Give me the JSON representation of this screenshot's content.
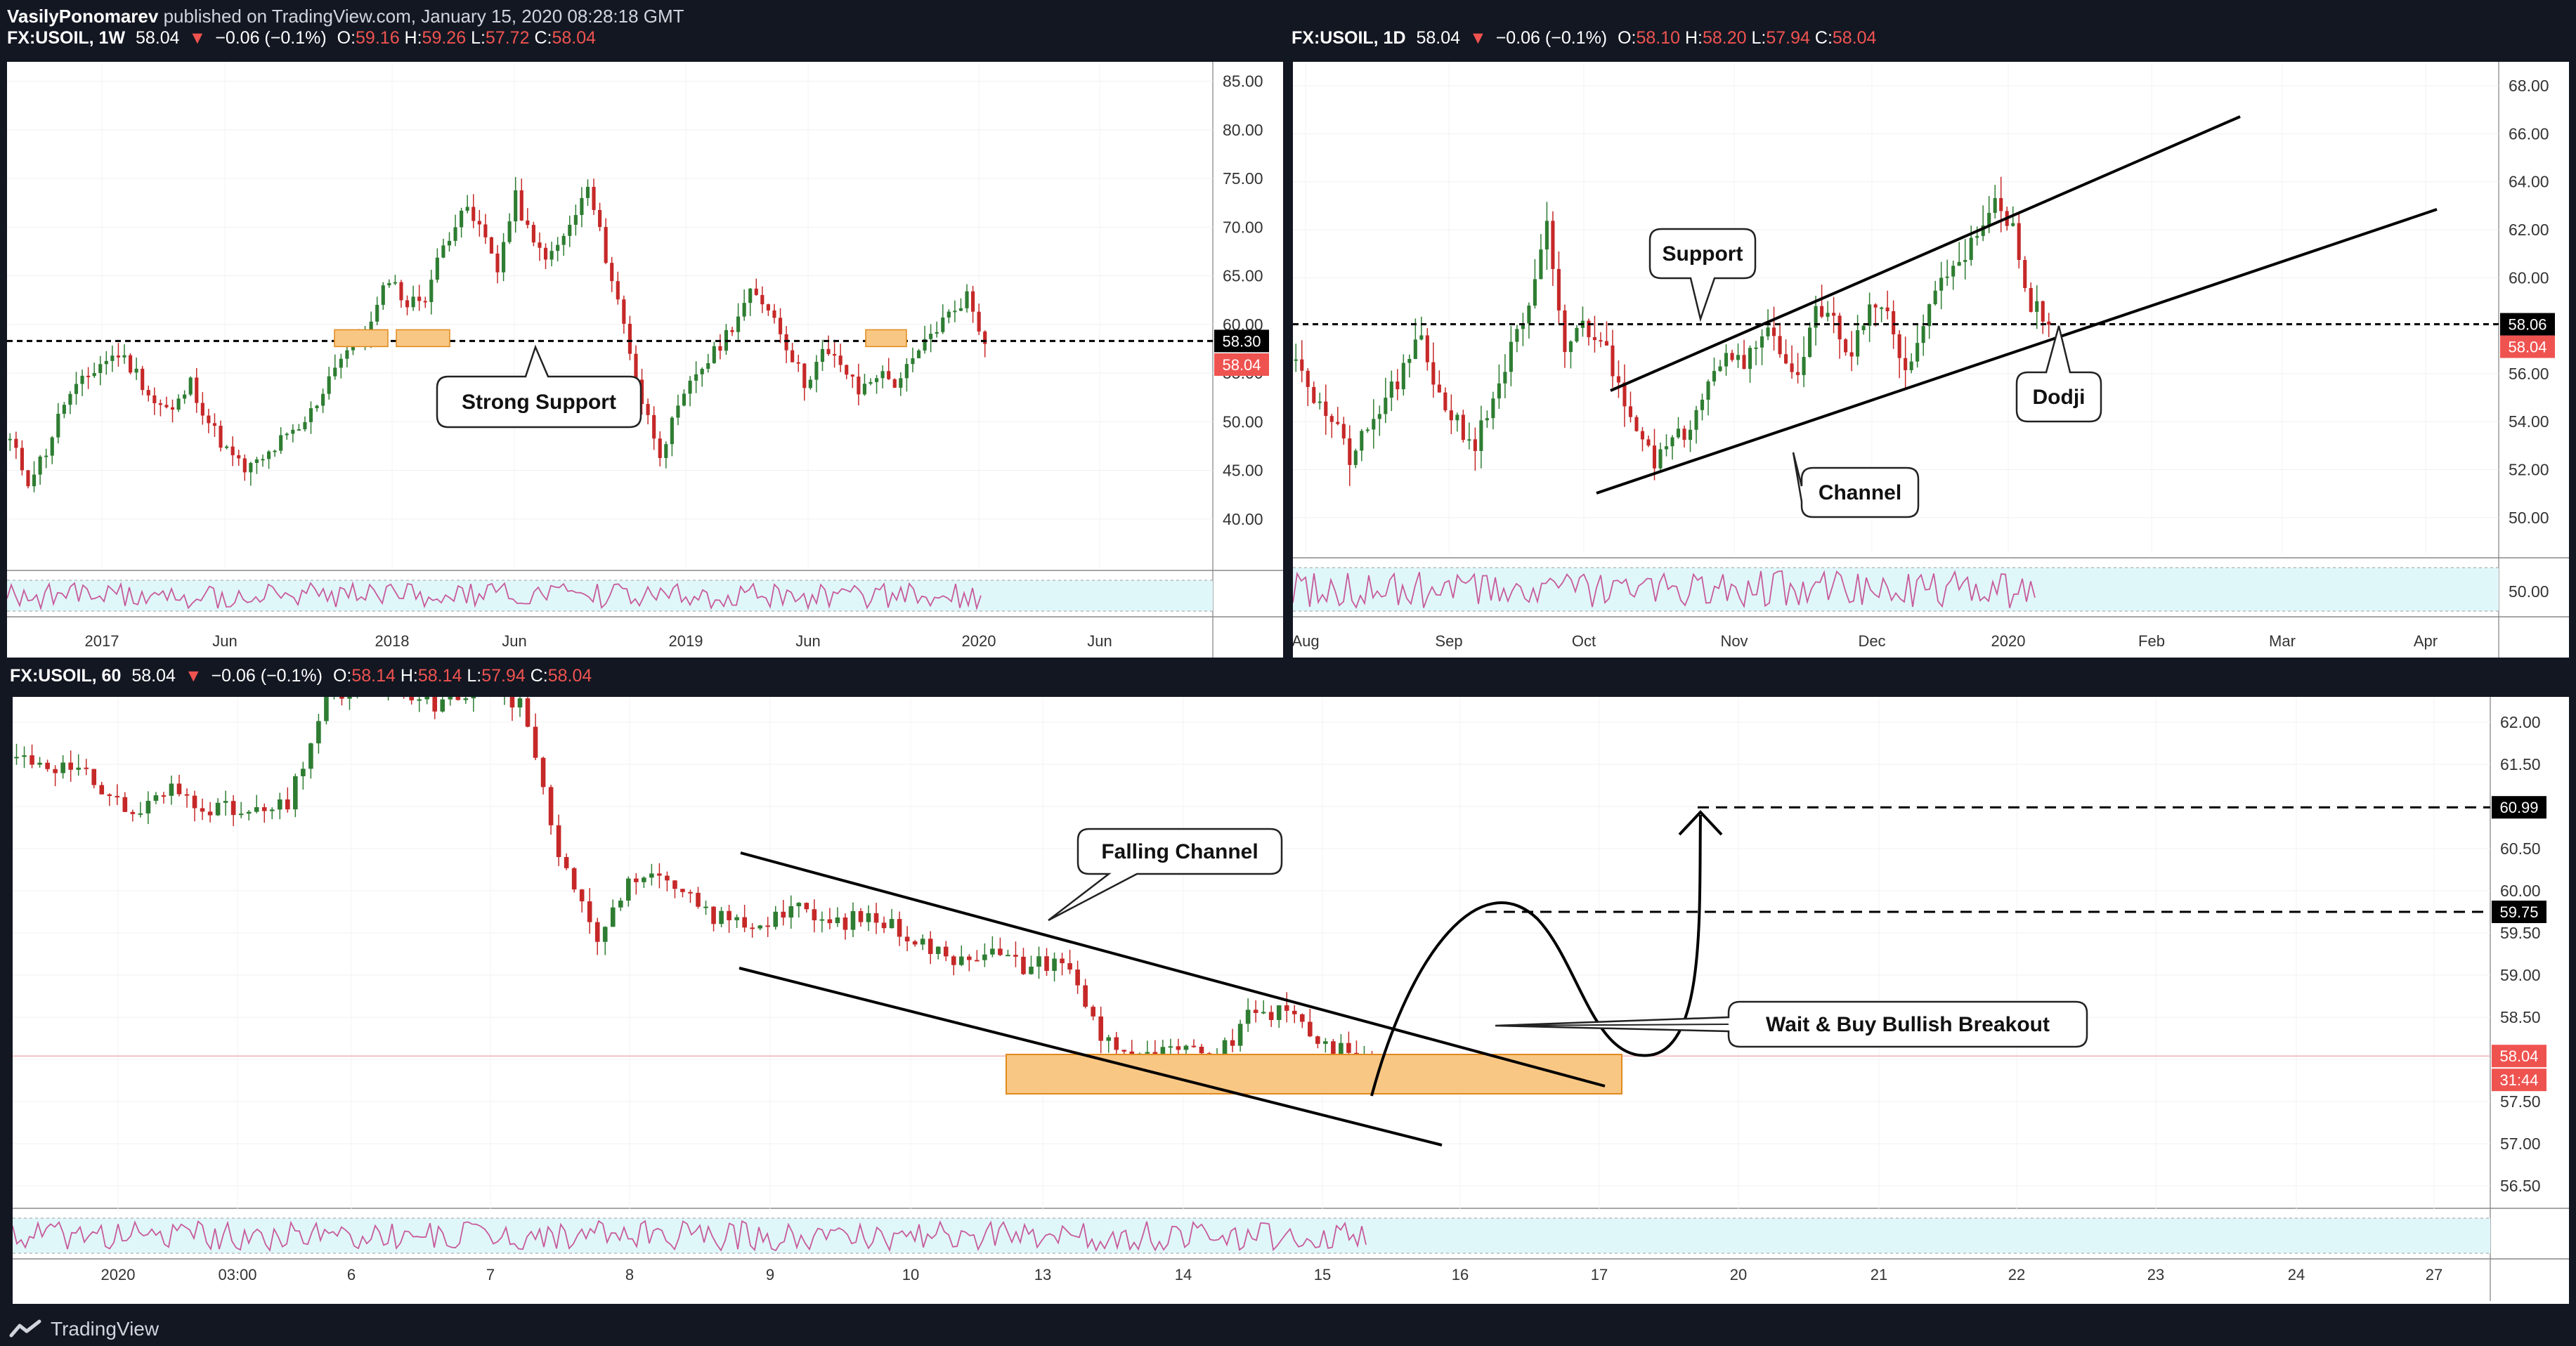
{
  "header": {
    "author": "VasilyPonomarev",
    "published": "published on TradingView.com, January 15, 2020 08:28:18 GMT"
  },
  "panels": {
    "weekly": {
      "symbol": "FX:USOIL, 1W",
      "price": "58.04",
      "change": "−0.06 (−0.1%)",
      "open": "59.16",
      "high": "59.26",
      "low": "57.72",
      "close": "58.04"
    },
    "daily": {
      "symbol": "FX:USOIL, 1D",
      "price": "58.04",
      "change": "−0.06 (−0.1%)",
      "open": "58.10",
      "high": "58.20",
      "low": "57.94",
      "close": "58.04"
    },
    "hourly": {
      "symbol": "FX:USOIL, 60",
      "price": "58.04",
      "change": "−0.06 (−0.1%)",
      "open": "58.14",
      "high": "58.14",
      "low": "57.94",
      "close": "58.04"
    }
  },
  "ohlc_labels": {
    "o": "O:",
    "h": "H:",
    "l": "L:",
    "c": "C:"
  },
  "footer": {
    "brand": "TradingView"
  },
  "colors": {
    "up": "#2e7d32",
    "down": "#c62828",
    "rsi": "#c75b9b",
    "rsi_bg": "#e0f7fa",
    "zone": "#f9c784",
    "badge_black": "#000000",
    "badge_red": "#ef5350"
  },
  "chart_data": [
    {
      "id": "weekly",
      "type": "candlestick",
      "ylim": [
        35,
        87
      ],
      "yticks": [
        35,
        40,
        45,
        50,
        55,
        60,
        65,
        70,
        75,
        80,
        85
      ],
      "xticks": [
        "2017",
        "Jun",
        "2018",
        "Jun",
        "2019",
        "Jun",
        "2020",
        "Jun"
      ],
      "support_level": 58.3,
      "price_badges": [
        {
          "label": "58.30",
          "color": "black"
        },
        {
          "label": "58.04",
          "color": "red"
        }
      ],
      "annotations": [
        {
          "text": "Strong Support"
        }
      ],
      "close_path": [
        48,
        44,
        47,
        52,
        54,
        56,
        57,
        55,
        52,
        51,
        54,
        50,
        47,
        45,
        46,
        48,
        49,
        52,
        56,
        58,
        60,
        65,
        62,
        63,
        68,
        72,
        70,
        66,
        73,
        68,
        67,
        70,
        74,
        67,
        60,
        52,
        47,
        51,
        55,
        57,
        60,
        63,
        62,
        58,
        54,
        57,
        56,
        53,
        55,
        54,
        56,
        59,
        61,
        63,
        58
      ]
    },
    {
      "id": "daily",
      "type": "candlestick",
      "ylim": [
        48.5,
        69
      ],
      "yticks": [
        50,
        52,
        54,
        56,
        58,
        60,
        62,
        64,
        66,
        68
      ],
      "xticks": [
        "Aug",
        "Sep",
        "Oct",
        "Nov",
        "Dec",
        "2020",
        "Feb",
        "Mar",
        "Apr"
      ],
      "support_level": 58.06,
      "price_badges": [
        {
          "label": "58.06",
          "color": "black"
        },
        {
          "label": "58.04",
          "color": "red"
        }
      ],
      "rsi_tick": "50.00",
      "annotations": [
        {
          "text": "Support"
        },
        {
          "text": "Dodji"
        },
        {
          "text": "Channel"
        }
      ],
      "close_path": [
        57,
        55,
        54,
        52.5,
        53.5,
        55,
        56,
        57.5,
        55,
        54,
        53,
        55,
        57,
        58.5,
        62,
        57,
        58,
        57.5,
        55.5,
        54,
        52.5,
        53,
        54,
        56,
        57,
        56.5,
        58,
        57,
        56,
        58.5,
        58,
        57,
        58.5,
        58.5,
        56,
        58,
        60,
        61,
        61.5,
        63,
        62,
        59,
        58.04
      ]
    },
    {
      "id": "hourly",
      "type": "candlestick",
      "ylim": [
        56.2,
        62.3
      ],
      "yticks": [
        56.5,
        57.0,
        57.5,
        58.0,
        58.5,
        59.0,
        59.5,
        60.0,
        60.5,
        61.0,
        61.5,
        62.0
      ],
      "xticks": [
        "2020",
        "03:00",
        "6",
        "7",
        "8",
        "9",
        "10",
        "13",
        "14",
        "15",
        "16",
        "17",
        "20",
        "21",
        "22",
        "23",
        "24",
        "27"
      ],
      "targets": [
        60.99,
        59.75
      ],
      "price_badges": [
        {
          "label": "60.99",
          "color": "black"
        },
        {
          "label": "59.75",
          "color": "black"
        },
        {
          "label": "58.04",
          "color": "red"
        },
        {
          "label": "31:44",
          "color": "red"
        }
      ],
      "annotations": [
        {
          "text": "Falling Channel"
        },
        {
          "text": "Wait & Buy Bullish Breakout"
        }
      ],
      "close_path": [
        61.6,
        61.5,
        61.3,
        60.9,
        61.2,
        61.0,
        60.9,
        61.0,
        62.3,
        62.4,
        62.3,
        62.2,
        62.5,
        62.2,
        60.5,
        59.5,
        60.2,
        60.0,
        59.7,
        59.6,
        59.8,
        59.6,
        59.7,
        59.5,
        59.2,
        59.3,
        59.1,
        59.2,
        58.3,
        58.0,
        58.1,
        58.0,
        58.6,
        58.5,
        58.1,
        58.04
      ]
    }
  ]
}
